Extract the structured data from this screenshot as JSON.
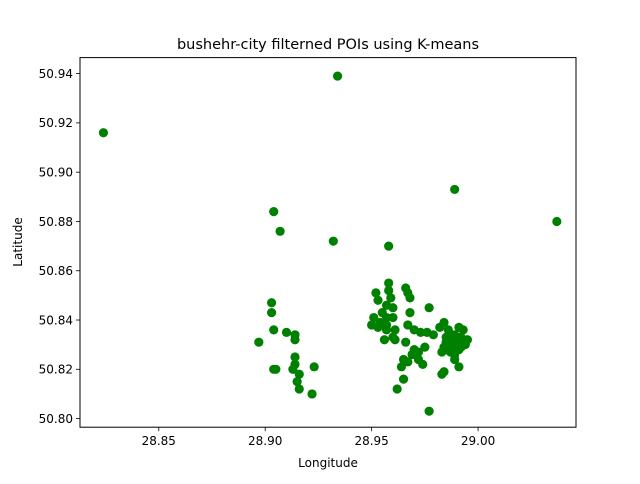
{
  "chart_data": {
    "type": "scatter",
    "title": "bushehr-city filterned POIs using K-means",
    "xlabel": "Longitude",
    "ylabel": "Latitude",
    "xlim": [
      28.813,
      29.046
    ],
    "ylim": [
      50.7965,
      50.9465
    ],
    "xticks": [
      28.85,
      28.9,
      28.95,
      29.0
    ],
    "xtick_labels": [
      "28.85",
      "28.90",
      "28.95",
      "29.00"
    ],
    "yticks": [
      50.8,
      50.82,
      50.84,
      50.86,
      50.88,
      50.9,
      50.92,
      50.94
    ],
    "ytick_labels": [
      "50.80",
      "50.82",
      "50.84",
      "50.86",
      "50.88",
      "50.90",
      "50.92",
      "50.94"
    ],
    "grid": false,
    "marker_color": "#008000",
    "series": [
      {
        "points": [
          [
            28.824,
            50.916
          ],
          [
            28.934,
            50.939
          ],
          [
            28.989,
            50.893
          ],
          [
            29.037,
            50.88
          ],
          [
            28.904,
            50.884
          ],
          [
            28.907,
            50.876
          ],
          [
            28.932,
            50.872
          ],
          [
            28.958,
            50.87
          ],
          [
            28.903,
            50.847
          ],
          [
            28.903,
            50.843
          ],
          [
            28.904,
            50.836
          ],
          [
            28.91,
            50.835
          ],
          [
            28.914,
            50.834
          ],
          [
            28.914,
            50.832
          ],
          [
            28.897,
            50.831
          ],
          [
            28.914,
            50.825
          ],
          [
            28.914,
            50.822
          ],
          [
            28.913,
            50.82
          ],
          [
            28.904,
            50.82
          ],
          [
            28.905,
            50.82
          ],
          [
            28.916,
            50.818
          ],
          [
            28.923,
            50.821
          ],
          [
            28.915,
            50.815
          ],
          [
            28.916,
            50.812
          ],
          [
            28.922,
            50.81
          ],
          [
            28.958,
            50.855
          ],
          [
            28.958,
            50.852
          ],
          [
            28.952,
            50.851
          ],
          [
            28.959,
            50.849
          ],
          [
            28.953,
            50.848
          ],
          [
            28.957,
            50.846
          ],
          [
            28.96,
            50.845
          ],
          [
            28.955,
            50.843
          ],
          [
            28.957,
            50.841
          ],
          [
            28.96,
            50.841
          ],
          [
            28.951,
            50.841
          ],
          [
            28.954,
            50.839
          ],
          [
            28.95,
            50.838
          ],
          [
            28.957,
            50.838
          ],
          [
            28.953,
            50.837
          ],
          [
            28.957,
            50.836
          ],
          [
            28.961,
            50.836
          ],
          [
            28.96,
            50.833
          ],
          [
            28.956,
            50.832
          ],
          [
            28.961,
            50.832
          ],
          [
            28.966,
            50.853
          ],
          [
            28.967,
            50.851
          ],
          [
            28.968,
            50.849
          ],
          [
            28.977,
            50.845
          ],
          [
            28.968,
            50.843
          ],
          [
            28.967,
            50.838
          ],
          [
            28.97,
            50.836
          ],
          [
            28.973,
            50.835
          ],
          [
            28.976,
            50.835
          ],
          [
            28.982,
            50.837
          ],
          [
            28.984,
            50.839
          ],
          [
            28.979,
            50.834
          ],
          [
            28.966,
            50.831
          ],
          [
            28.97,
            50.828
          ],
          [
            28.972,
            50.827
          ],
          [
            28.975,
            50.829
          ],
          [
            28.969,
            50.826
          ],
          [
            28.965,
            50.824
          ],
          [
            28.972,
            50.824
          ],
          [
            28.967,
            50.823
          ],
          [
            28.964,
            50.821
          ],
          [
            28.974,
            50.822
          ],
          [
            28.962,
            50.812
          ],
          [
            28.965,
            50.816
          ],
          [
            28.983,
            50.818
          ],
          [
            28.984,
            50.819
          ],
          [
            28.977,
            50.803
          ],
          [
            28.986,
            50.836
          ],
          [
            28.989,
            50.834
          ],
          [
            28.987,
            50.832
          ],
          [
            28.991,
            50.837
          ],
          [
            28.993,
            50.836
          ],
          [
            28.985,
            50.833
          ],
          [
            28.986,
            50.83
          ],
          [
            28.988,
            50.831
          ],
          [
            28.99,
            50.832
          ],
          [
            28.992,
            50.833
          ],
          [
            28.994,
            50.831
          ],
          [
            28.984,
            50.829
          ],
          [
            28.986,
            50.828
          ],
          [
            28.988,
            50.829
          ],
          [
            28.99,
            50.828
          ],
          [
            28.992,
            50.829
          ],
          [
            28.994,
            50.83
          ],
          [
            28.983,
            50.827
          ],
          [
            28.987,
            50.827
          ],
          [
            28.989,
            50.826
          ],
          [
            28.991,
            50.828
          ],
          [
            28.989,
            50.824
          ],
          [
            28.991,
            50.821
          ],
          [
            28.985,
            50.831
          ],
          [
            28.987,
            50.834
          ],
          [
            28.993,
            50.832
          ],
          [
            28.995,
            50.832
          ],
          [
            28.989,
            50.83
          ]
        ]
      }
    ]
  }
}
